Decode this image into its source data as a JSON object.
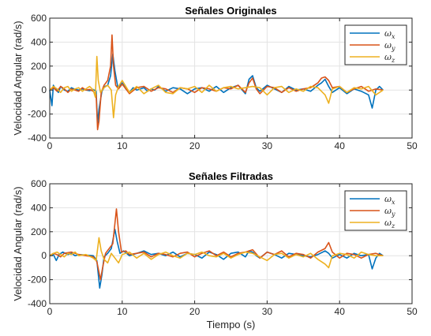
{
  "chart_data": [
    {
      "type": "line",
      "title": "Señales Originales",
      "xlabel": "",
      "ylabel": "Velocidad Angular (rad/s)",
      "xlim": [
        0,
        50
      ],
      "ylim": [
        -400,
        600
      ],
      "xticks": [
        0,
        10,
        20,
        30,
        40,
        50
      ],
      "yticks": [
        -400,
        -200,
        0,
        200,
        400,
        600
      ],
      "grid": true,
      "legend_position": "top-right",
      "series": [
        {
          "name": "ωx",
          "color": "#0072BD",
          "x": [
            0,
            0.3,
            0.5,
            0.8,
            1.2,
            1.5,
            2,
            2.5,
            3,
            3.5,
            4,
            4.5,
            5,
            5.5,
            6,
            6.4,
            6.6,
            6.8,
            7.2,
            7.6,
            8.0,
            8.4,
            8.7,
            9.0,
            9.4,
            10,
            10.5,
            11,
            11.5,
            12,
            12.5,
            13,
            13.5,
            14,
            14.5,
            15,
            16,
            17,
            18,
            19,
            20,
            21,
            22,
            23,
            24,
            25,
            26,
            27,
            27.5,
            28,
            28.5,
            29,
            30,
            31,
            32,
            33,
            34,
            35,
            36,
            37,
            37.5,
            38,
            38.5,
            39,
            40,
            41,
            42,
            43,
            44,
            44.5,
            45,
            45.5,
            46
          ],
          "values": [
            0,
            -130,
            40,
            10,
            -20,
            30,
            0,
            -10,
            20,
            5,
            0,
            10,
            0,
            -5,
            5,
            -10,
            -280,
            -160,
            -10,
            30,
            40,
            120,
            300,
            160,
            20,
            60,
            10,
            -20,
            20,
            0,
            10,
            20,
            -10,
            10,
            0,
            30,
            -10,
            20,
            10,
            -30,
            10,
            20,
            -10,
            30,
            -20,
            20,
            40,
            -30,
            90,
            120,
            20,
            -10,
            40,
            10,
            -20,
            30,
            0,
            10,
            -10,
            40,
            60,
            90,
            30,
            -20,
            20,
            -30,
            10,
            -10,
            -40,
            -150,
            0,
            30,
            0
          ]
        },
        {
          "name": "ωy",
          "color": "#D95319",
          "x": [
            0,
            0.5,
            1,
            1.5,
            2,
            2.5,
            3,
            3.5,
            4,
            4.5,
            5,
            5.5,
            6,
            6.4,
            6.6,
            6.8,
            7.1,
            7.5,
            8.0,
            8.4,
            8.6,
            8.8,
            9.1,
            9.5,
            10,
            10.5,
            11,
            12,
            13,
            14,
            15,
            16,
            17,
            18,
            19,
            20,
            21,
            22,
            23,
            24,
            25,
            26,
            27,
            27.5,
            28,
            28.5,
            29,
            30,
            31,
            32,
            33,
            34,
            35,
            36,
            37,
            37.5,
            38,
            38.5,
            39,
            40,
            41,
            42,
            43,
            44,
            45,
            46
          ],
          "values": [
            0,
            20,
            -10,
            30,
            10,
            -20,
            10,
            0,
            -10,
            20,
            0,
            5,
            -10,
            -40,
            -330,
            -260,
            -20,
            40,
            80,
            200,
            460,
            200,
            40,
            10,
            50,
            10,
            -30,
            20,
            30,
            -10,
            20,
            10,
            -20,
            20,
            10,
            -20,
            20,
            10,
            -10,
            20,
            10,
            40,
            -20,
            60,
            100,
            10,
            -30,
            30,
            20,
            -20,
            20,
            -10,
            10,
            20,
            60,
            100,
            110,
            80,
            20,
            30,
            -20,
            10,
            30,
            -10,
            10,
            0
          ]
        },
        {
          "name": "ωz",
          "color": "#EDB120",
          "x": [
            0,
            0.5,
            1,
            1.5,
            2,
            2.5,
            3,
            3.5,
            4,
            4.5,
            5,
            5.5,
            6,
            6.3,
            6.5,
            6.7,
            7.0,
            7.5,
            8.0,
            8.5,
            8.8,
            9.1,
            9.5,
            10,
            11,
            12,
            13,
            14,
            15,
            16,
            17,
            18,
            19,
            20,
            21,
            22,
            23,
            24,
            25,
            26,
            27,
            28,
            29,
            30,
            31,
            32,
            33,
            34,
            35,
            36,
            37,
            38,
            38.5,
            39,
            40,
            41,
            42,
            43,
            44,
            45,
            46
          ],
          "values": [
            0,
            30,
            10,
            -20,
            20,
            30,
            -10,
            10,
            20,
            -10,
            10,
            30,
            0,
            -60,
            280,
            80,
            -20,
            20,
            40,
            0,
            -230,
            -40,
            30,
            80,
            -20,
            30,
            -30,
            10,
            40,
            -20,
            -30,
            20,
            10,
            30,
            -20,
            40,
            -10,
            20,
            30,
            10,
            20,
            30,
            20,
            -40,
            20,
            30,
            -20,
            10,
            -10,
            30,
            20,
            -40,
            -110,
            10,
            30,
            -20,
            20,
            10,
            30,
            -40,
            0
          ]
        }
      ]
    },
    {
      "type": "line",
      "title": "Señales Filtradas",
      "xlabel": "Tiempo (s)",
      "ylabel": "Velocidad Angular (rad/s)",
      "xlim": [
        0,
        50
      ],
      "ylim": [
        -400,
        600
      ],
      "xticks": [
        0,
        10,
        20,
        30,
        40,
        50
      ],
      "yticks": [
        -400,
        -200,
        0,
        200,
        400,
        600
      ],
      "grid": true,
      "legend_position": "top-right",
      "series": [
        {
          "name": "ωx",
          "color": "#0072BD",
          "x": [
            0,
            0.5,
            0.9,
            1.3,
            1.8,
            2.5,
            3,
            3.5,
            4,
            5,
            6,
            6.5,
            6.9,
            7.2,
            7.5,
            8,
            8.5,
            9.0,
            9.3,
            9.7,
            10.2,
            11,
            12,
            13,
            14,
            15,
            16,
            17,
            18,
            19,
            20,
            21,
            22,
            23,
            24,
            25,
            26,
            27,
            27.5,
            28,
            28.5,
            29,
            30,
            31,
            32,
            33,
            34,
            35,
            36,
            37,
            38,
            38.5,
            39,
            40,
            41,
            42,
            43,
            44,
            44.5,
            45,
            45.5,
            46
          ],
          "values": [
            0,
            10,
            -40,
            10,
            30,
            10,
            20,
            0,
            10,
            5,
            0,
            -40,
            -270,
            -160,
            -10,
            20,
            60,
            220,
            120,
            20,
            40,
            0,
            20,
            40,
            10,
            20,
            0,
            30,
            -10,
            20,
            10,
            -20,
            30,
            10,
            -30,
            20,
            30,
            -10,
            40,
            30,
            0,
            -20,
            30,
            10,
            -20,
            20,
            10,
            0,
            -10,
            10,
            40,
            20,
            -20,
            10,
            -20,
            20,
            0,
            10,
            -110,
            -20,
            20,
            0
          ]
        },
        {
          "name": "ωy",
          "color": "#D95319",
          "x": [
            0,
            0.5,
            1,
            1.5,
            2,
            3,
            4,
            5,
            6,
            6.5,
            7.0,
            7.3,
            7.7,
            8.2,
            8.7,
            9.2,
            9.5,
            9.9,
            10.5,
            11,
            12,
            13,
            14,
            15,
            16,
            17,
            18,
            19,
            20,
            21,
            22,
            23,
            24,
            25,
            26,
            27,
            28,
            29,
            30,
            31,
            32,
            33,
            34,
            35,
            36,
            37,
            38,
            38.5,
            39,
            40,
            41,
            42,
            43,
            44,
            45,
            46
          ],
          "values": [
            0,
            20,
            10,
            -10,
            20,
            30,
            10,
            0,
            -10,
            -50,
            -200,
            -100,
            20,
            60,
            100,
            390,
            200,
            30,
            40,
            10,
            20,
            30,
            -10,
            20,
            10,
            -10,
            20,
            30,
            -10,
            20,
            40,
            0,
            30,
            -10,
            20,
            30,
            50,
            -20,
            30,
            10,
            40,
            -10,
            20,
            10,
            -20,
            30,
            60,
            110,
            30,
            -20,
            20,
            10,
            -20,
            10,
            20,
            0
          ]
        },
        {
          "name": "ωz",
          "color": "#EDB120",
          "x": [
            0,
            0.5,
            1,
            1.5,
            2,
            2.5,
            3,
            3.5,
            4,
            5,
            6,
            6.4,
            6.8,
            7.1,
            7.5,
            8,
            8.5,
            9,
            9.5,
            10,
            11,
            12,
            13,
            14,
            15,
            16,
            17,
            18,
            19,
            20,
            21,
            22,
            23,
            24,
            25,
            26,
            27,
            28,
            29,
            30,
            31,
            32,
            33,
            34,
            35,
            36,
            37,
            38,
            38.5,
            39,
            40,
            41,
            42,
            43,
            44,
            45,
            46
          ],
          "values": [
            0,
            20,
            30,
            10,
            -10,
            20,
            10,
            30,
            0,
            10,
            -20,
            -40,
            150,
            40,
            -30,
            -60,
            20,
            -20,
            -60,
            10,
            30,
            -20,
            20,
            -30,
            10,
            30,
            0,
            -20,
            20,
            10,
            30,
            0,
            -10,
            20,
            -20,
            10,
            30,
            20,
            -10,
            -40,
            10,
            20,
            -20,
            10,
            -10,
            20,
            -30,
            -70,
            -100,
            0,
            20,
            10,
            -20,
            30,
            10,
            0,
            0
          ]
        }
      ]
    }
  ]
}
